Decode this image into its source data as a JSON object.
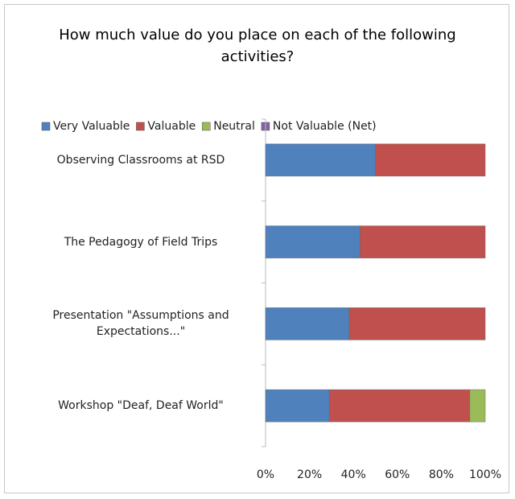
{
  "chart_data": {
    "type": "stacked-barh",
    "title": "How much value do you place on each of the following activities?",
    "categories": [
      "Observing Classrooms at RSD",
      "The Pedagogy of Field Trips",
      "Presentation \"Assumptions and Expectations...\"",
      "Workshop \"Deaf, Deaf World\""
    ],
    "series": [
      {
        "name": "Very Valuable",
        "color": "#4f81bd",
        "values": [
          50,
          43,
          38,
          29
        ]
      },
      {
        "name": "Valuable",
        "color": "#c0504d",
        "values": [
          50,
          57,
          62,
          64
        ]
      },
      {
        "name": "Neutral",
        "color": "#9bbb59",
        "values": [
          0,
          0,
          0,
          7
        ]
      },
      {
        "name": "Not Valuable (Net)",
        "color": "#8064a2",
        "values": [
          0,
          0,
          0,
          0
        ]
      }
    ],
    "xlim": [
      0,
      100
    ],
    "xticks": [
      {
        "value": 0,
        "label": "0%"
      },
      {
        "value": 20,
        "label": "20%"
      },
      {
        "value": 40,
        "label": "40%"
      },
      {
        "value": 60,
        "label": "60%"
      },
      {
        "value": 80,
        "label": "80%"
      },
      {
        "value": 100,
        "label": "100%"
      }
    ],
    "legend": "top",
    "grid": false
  }
}
